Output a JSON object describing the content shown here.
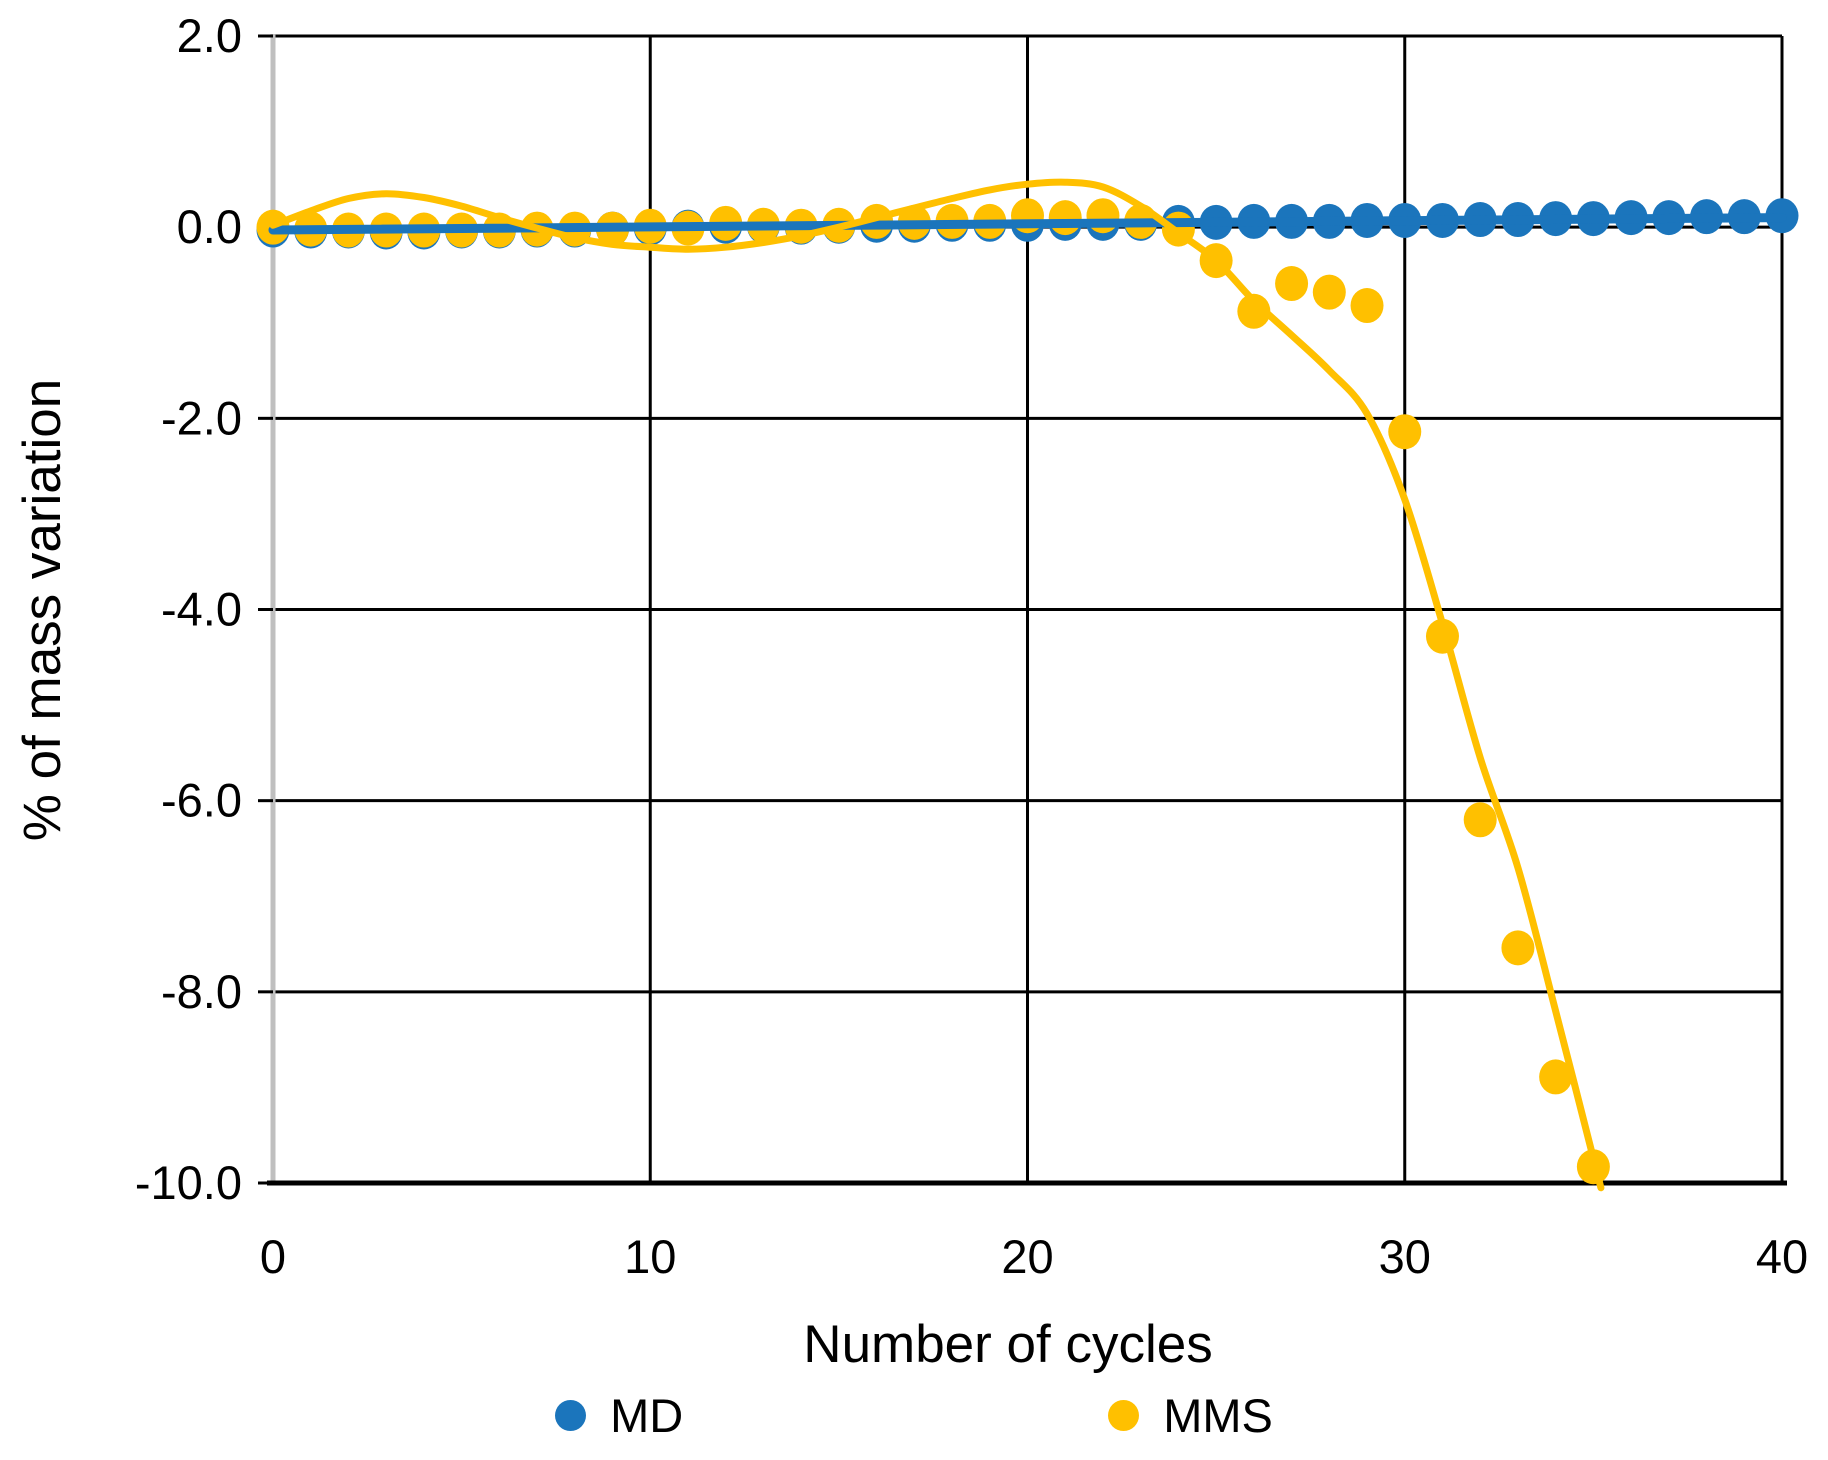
{
  "chart_data": {
    "type": "scatter",
    "title": "",
    "xlabel": "Number of cycles",
    "ylabel": "% of mass variation",
    "xlim": [
      0,
      40
    ],
    "ylim": [
      -10.0,
      2.0
    ],
    "x_ticks": [
      0,
      10,
      20,
      30,
      40
    ],
    "x_tick_labels": [
      "0",
      "10",
      "20",
      "30",
      "40"
    ],
    "y_ticks": [
      2,
      0,
      -2,
      -4,
      -6,
      -8,
      -10
    ],
    "y_tick_labels": [
      "2.0",
      "0.0",
      "-2.0",
      "-4.0",
      "-6.0",
      "-8.0",
      "-10.0"
    ],
    "grid": true,
    "gridline_color": "#000000",
    "axis_line_color": "#bfbfbf",
    "x_axis_line_color": "#000000",
    "legend_position": "bottom",
    "series": [
      {
        "name": "MD",
        "color": "#1b75bc",
        "x": [
          0,
          1,
          2,
          3,
          4,
          5,
          6,
          7,
          8,
          9,
          10,
          11,
          12,
          13,
          14,
          15,
          16,
          17,
          18,
          19,
          20,
          21,
          22,
          23,
          24,
          25,
          26,
          27,
          28,
          29,
          30,
          31,
          32,
          33,
          34,
          35,
          36,
          37,
          38,
          39,
          40
        ],
        "values": [
          -0.03,
          -0.04,
          -0.04,
          -0.05,
          -0.05,
          -0.04,
          -0.04,
          -0.03,
          -0.03,
          -0.02,
          -0.01,
          0.0,
          0.01,
          0.01,
          0.0,
          0.01,
          0.02,
          0.02,
          0.03,
          0.03,
          0.03,
          0.04,
          0.04,
          0.04,
          0.05,
          0.05,
          0.06,
          0.06,
          0.06,
          0.07,
          0.07,
          0.07,
          0.08,
          0.08,
          0.09,
          0.09,
          0.1,
          0.1,
          0.11,
          0.11,
          0.12
        ],
        "trend_points": [
          [
            0,
            -0.03
          ],
          [
            40,
            0.1
          ]
        ]
      },
      {
        "name": "MMS",
        "color": "#ffc000",
        "x": [
          0,
          1,
          2,
          3,
          4,
          5,
          6,
          7,
          8,
          9,
          10,
          11,
          12,
          13,
          14,
          15,
          16,
          17,
          18,
          19,
          20,
          21,
          22,
          23,
          24,
          25,
          26,
          27,
          28,
          29,
          30,
          31,
          32,
          33,
          34,
          35
        ],
        "values": [
          0.0,
          -0.02,
          -0.03,
          -0.03,
          -0.03,
          -0.03,
          -0.03,
          -0.02,
          -0.02,
          -0.02,
          0.01,
          -0.01,
          0.04,
          0.02,
          0.01,
          0.02,
          0.06,
          0.05,
          0.06,
          0.06,
          0.12,
          0.1,
          0.12,
          0.06,
          -0.02,
          -0.35,
          -0.88,
          -0.59,
          -0.68,
          -0.82,
          -2.14,
          -4.28,
          -6.2,
          -7.54,
          -8.89,
          -9.83
        ],
        "trend_points": [
          [
            0,
            0.02
          ],
          [
            1,
            0.17
          ],
          [
            2,
            0.3
          ],
          [
            3,
            0.35
          ],
          [
            4,
            0.31
          ],
          [
            5,
            0.22
          ],
          [
            6,
            0.1
          ],
          [
            7,
            -0.01
          ],
          [
            8,
            -0.11
          ],
          [
            9,
            -0.18
          ],
          [
            10,
            -0.21
          ],
          [
            11,
            -0.23
          ],
          [
            12,
            -0.21
          ],
          [
            13,
            -0.16
          ],
          [
            14,
            -0.09
          ],
          [
            15,
            0.0
          ],
          [
            16,
            0.1
          ],
          [
            17,
            0.2
          ],
          [
            18,
            0.3
          ],
          [
            19,
            0.39
          ],
          [
            20,
            0.45
          ],
          [
            21,
            0.47
          ],
          [
            22,
            0.42
          ],
          [
            23,
            0.22
          ],
          [
            24,
            -0.06
          ],
          [
            25,
            -0.35
          ],
          [
            26,
            -0.77
          ],
          [
            27,
            -1.13
          ],
          [
            28,
            -1.5
          ],
          [
            29,
            -1.95
          ],
          [
            30,
            -2.85
          ],
          [
            31,
            -4.15
          ],
          [
            32,
            -5.55
          ],
          [
            33,
            -6.7
          ],
          [
            34,
            -8.2
          ],
          [
            35.2,
            -10.05
          ]
        ]
      }
    ]
  },
  "legend": {
    "items": [
      {
        "label": "MD",
        "color": "#1b75bc"
      },
      {
        "label": "MMS",
        "color": "#ffc000"
      }
    ]
  }
}
